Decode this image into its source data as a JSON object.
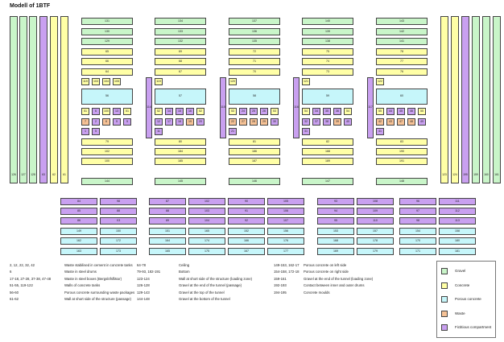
{
  "title": "Modell of 1BTF",
  "colors": {
    "G": "#c9f5c9",
    "C": "#ffffa6",
    "P": "#c6f6fa",
    "W": "#f6c296",
    "F": "#c9a0f0"
  },
  "legend": [
    {
      "type": "G",
      "label": "Gravel"
    },
    {
      "type": "C",
      "label": "Concrete"
    },
    {
      "type": "P",
      "label": "Porous concrete"
    },
    {
      "type": "W",
      "label": "Waste"
    },
    {
      "type": "F",
      "label": "Fictitious compartment"
    }
  ],
  "notes": {
    "left": [
      {
        "codes": "2, 12, 22, 32, 42",
        "text": "Waste stabilised in cement in concrete tanks"
      },
      {
        "codes": "6",
        "text": "Waste in steel drums"
      },
      {
        "codes": "17-18, 27-28, 37-38, 47-48",
        "text": "Waste in steel boxes (Bergslöfsflätor)"
      },
      {
        "codes": "51-55, 119-122",
        "text": "Walls of concrete tanks"
      },
      {
        "codes": "56-60",
        "text": "Porous concrete surrounding waste packages"
      },
      {
        "codes": "61-62",
        "text": "Wall at short side of the structure (passage)"
      }
    ],
    "middle": [
      {
        "codes": "64-78",
        "text": "Ceiling"
      },
      {
        "codes": "79-93, 182-191",
        "text": "Bottom"
      },
      {
        "codes": "123-124",
        "text": "Wall at short side of the structure (loading zone)"
      },
      {
        "codes": "126-128",
        "text": "Gravel at the end of the tunnel (passage)"
      },
      {
        "codes": "129-143",
        "text": "Gravel at the top of the tunnel"
      },
      {
        "codes": "144-148",
        "text": "Gravel at the bottom of the tunnel"
      }
    ],
    "right": [
      {
        "codes": "149-153, 162-17",
        "text": "Porous concrete on left side"
      },
      {
        "codes": "154-158, 172-18",
        "text": "Porous concrete on right side"
      },
      {
        "codes": "159-161",
        "text": "Gravel at the end of the tunnel (loading zone)"
      },
      {
        "codes": "192-193",
        "text": "Contact between inner and outer drums"
      },
      {
        "codes": "194-195",
        "text": "Concrete moulds"
      }
    ]
  },
  "diagram": {
    "left_vertical": [
      {
        "label": "126",
        "type": "G"
      },
      {
        "label": "127",
        "type": "G"
      },
      {
        "label": "128",
        "type": "G"
      },
      {
        "label": "63",
        "type": "F"
      },
      {
        "label": "62",
        "type": "C"
      },
      {
        "label": "61",
        "type": "C"
      }
    ],
    "right_vertical": [
      {
        "label": "123",
        "type": "C"
      },
      {
        "label": "124",
        "type": "C"
      },
      {
        "label": "195",
        "type": "F"
      },
      {
        "label": "159",
        "type": "G"
      },
      {
        "label": "160",
        "type": "G"
      },
      {
        "label": "161",
        "type": "G"
      }
    ],
    "separators": [
      "114",
      "115",
      "116",
      "117"
    ],
    "compartments": [
      {
        "top": [
          "131",
          "130",
          "129",
          "65",
          "66",
          "64"
        ],
        "top_small": [
          {
            "label": "119",
            "type": "C"
          },
          {
            "label": "103",
            "type": "C"
          },
          {
            "label": "104",
            "type": "C"
          },
          {
            "label": "105",
            "type": "C"
          }
        ],
        "pc": "56",
        "rows": [
          [
            {
              "label": "51",
              "type": "C"
            },
            {
              "label": "6",
              "type": "F"
            },
            {
              "label": "100",
              "type": "C"
            },
            {
              "label": "13",
              "type": "F"
            },
            {
              "label": "51",
              "type": "C"
            }
          ],
          [
            {
              "label": "7",
              "type": "W"
            },
            {
              "label": "2",
              "type": "F"
            },
            {
              "label": "6",
              "type": "W"
            },
            {
              "label": "5",
              "type": "F"
            },
            {
              "label": "5",
              "type": "F"
            }
          ],
          [
            {
              "label": "1",
              "type": "F"
            },
            {
              "label": "5",
              "type": "F"
            }
          ]
        ],
        "bottom": [
          "79",
          "102",
          "100"
        ],
        "gravel": "144"
      },
      {
        "top": [
          "134",
          "133",
          "132",
          "69",
          "68",
          "67"
        ],
        "top_small": [
          {
            "label": "119",
            "type": "C"
          }
        ],
        "pc": "57",
        "rows": [
          [
            {
              "label": "52",
              "type": "C"
            },
            {
              "label": "14",
              "type": "F"
            },
            {
              "label": "15",
              "type": "F"
            },
            {
              "label": "16",
              "type": "F"
            },
            {
              "label": "52",
              "type": "C"
            }
          ],
          [
            {
              "label": "12",
              "type": "F"
            },
            {
              "label": "17",
              "type": "F"
            },
            {
              "label": "18",
              "type": "F"
            },
            {
              "label": "19",
              "type": "W"
            },
            {
              "label": "20",
              "type": "F"
            }
          ],
          [
            {
              "label": "11",
              "type": "F"
            }
          ]
        ],
        "bottom": [
          "80",
          "184",
          "185"
        ],
        "gravel": "145"
      },
      {
        "top": [
          "137",
          "136",
          "135",
          "72",
          "71",
          "70"
        ],
        "top_small": [
          {
            "label": "120",
            "type": "C"
          }
        ],
        "pc": "58",
        "rows": [
          [
            {
              "label": "53",
              "type": "C"
            },
            {
              "label": "24",
              "type": "F"
            },
            {
              "label": "25",
              "type": "F"
            },
            {
              "label": "26",
              "type": "F"
            },
            {
              "label": "53",
              "type": "C"
            }
          ],
          [
            {
              "label": "22",
              "type": "W"
            },
            {
              "label": "27",
              "type": "W"
            },
            {
              "label": "28",
              "type": "W"
            },
            {
              "label": "29",
              "type": "W"
            },
            {
              "label": "30",
              "type": "F"
            }
          ],
          [
            {
              "label": "21",
              "type": "F"
            }
          ]
        ],
        "bottom": [
          "81",
          "186",
          "187"
        ],
        "gravel": "146"
      },
      {
        "top": [
          "140",
          "139",
          "138",
          "75",
          "74",
          "73"
        ],
        "top_small": [
          {
            "label": "121",
            "type": "C"
          }
        ],
        "pc": "59",
        "rows": [
          [
            {
              "label": "54",
              "type": "C"
            },
            {
              "label": "34",
              "type": "F"
            },
            {
              "label": "35",
              "type": "F"
            },
            {
              "label": "36",
              "type": "F"
            },
            {
              "label": "54",
              "type": "C"
            }
          ],
          [
            {
              "label": "32",
              "type": "F"
            },
            {
              "label": "37",
              "type": "F"
            },
            {
              "label": "38",
              "type": "F"
            },
            {
              "label": "39",
              "type": "W"
            },
            {
              "label": "40",
              "type": "F"
            }
          ],
          [
            {
              "label": "31",
              "type": "F"
            }
          ]
        ],
        "bottom": [
          "82",
          "188",
          "189"
        ],
        "gravel": "147"
      },
      {
        "top": [
          "143",
          "142",
          "141",
          "78",
          "77",
          "76"
        ],
        "top_small": [
          {
            "label": "122",
            "type": "C"
          }
        ],
        "pc": "60",
        "rows": [
          [
            {
              "label": "55",
              "type": "C"
            },
            {
              "label": "44",
              "type": "F"
            },
            {
              "label": "45",
              "type": "F"
            },
            {
              "label": "46",
              "type": "F"
            },
            {
              "label": "55",
              "type": "C"
            }
          ],
          [
            {
              "label": "42",
              "type": "W"
            },
            {
              "label": "43",
              "type": "W"
            },
            {
              "label": "47",
              "type": "W"
            },
            {
              "label": "48",
              "type": "W"
            },
            {
              "label": "49",
              "type": "F"
            }
          ],
          [
            {
              "label": "41",
              "type": "F"
            }
          ]
        ],
        "bottom": [
          "83",
          "190",
          "191"
        ],
        "gravel": "148"
      }
    ],
    "lower_blocks": [
      {
        "cols": [
          [
            "84",
            "85",
            "86",
            "149",
            "162",
            "163"
          ],
          [
            "98",
            "88",
            "X3",
            "150",
            "172",
            "173"
          ]
        ]
      },
      {
        "cols": [
          [
            "87",
            "88",
            "89",
            "151",
            "164",
            "165"
          ],
          [
            "102",
            "103",
            "104",
            "165",
            "174",
            "175"
          ]
        ]
      },
      {
        "cols": [
          [
            "90",
            "91",
            "92",
            "152",
            "166",
            "167"
          ],
          [
            "105",
            "106",
            "107",
            "156",
            "176",
            "177"
          ]
        ]
      },
      {
        "cols": [
          [
            "93",
            "94",
            "95",
            "153",
            "168",
            "169"
          ],
          [
            "108",
            "109",
            "110",
            "157",
            "178",
            "179"
          ]
        ]
      },
      {
        "cols": [
          [
            "96",
            "97",
            "98",
            "154",
            "170",
            "171"
          ],
          [
            "111",
            "112",
            "113",
            "158",
            "180",
            "181"
          ]
        ]
      }
    ]
  }
}
